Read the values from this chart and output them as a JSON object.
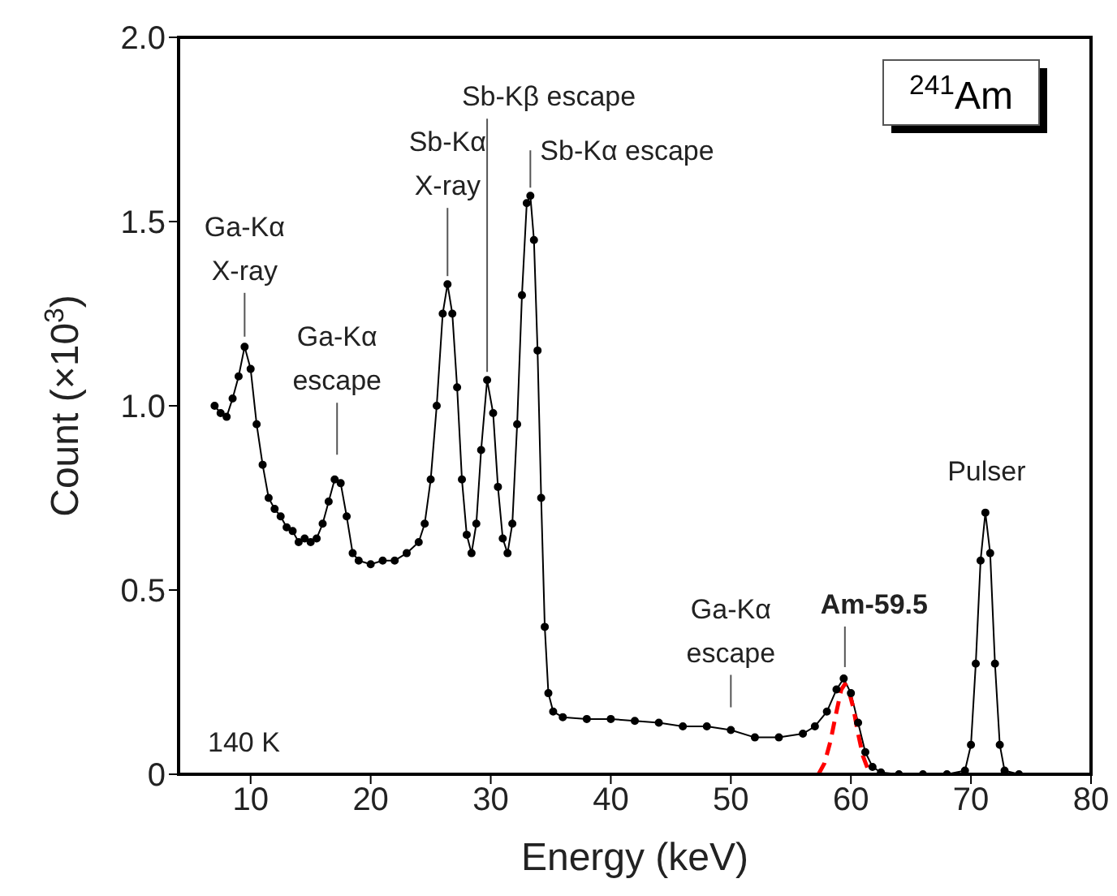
{
  "chart_data": {
    "type": "line",
    "xlabel": "Energy (keV)",
    "ylabel": "Count (×10$^{3}$)",
    "xlim": [
      4,
      80
    ],
    "xticks": [
      10,
      20,
      30,
      40,
      50,
      60,
      70,
      80
    ],
    "ylim": [
      0,
      2
    ],
    "yticks": [
      0,
      0.5,
      {
        "value": 1,
        "label": "1.0"
      },
      1.5,
      {
        "value": 2,
        "label": "2.0"
      }
    ],
    "grid": false,
    "series": [
      {
        "color": "#000000",
        "marker": "circle",
        "line_style": "solid",
        "x": [
          7,
          7.5,
          8,
          8.5,
          9,
          9.5,
          10,
          10.5,
          11,
          11.5,
          12,
          12.5,
          13,
          13.5,
          14,
          14.5,
          15,
          15.5,
          16,
          16.5,
          17,
          17.5,
          18,
          18.5,
          19,
          20,
          21,
          22,
          23,
          24,
          24.5,
          25,
          25.5,
          26,
          26.4,
          26.8,
          27.2,
          27.6,
          28,
          28.4,
          28.8,
          29.2,
          29.7,
          30.2,
          30.6,
          31,
          31.4,
          31.8,
          32.2,
          32.6,
          33,
          33.3,
          33.6,
          33.9,
          34.2,
          34.5,
          34.8,
          35.2,
          36,
          38,
          40,
          42,
          44,
          46,
          48,
          50,
          52,
          54,
          56,
          57,
          58,
          58.8,
          59.4,
          60,
          60.6,
          61.2,
          61.8,
          62.5,
          64,
          66,
          68,
          69.5,
          70,
          70.4,
          70.8,
          71.2,
          71.6,
          72,
          72.4,
          72.8,
          74
        ],
        "values": [
          1,
          0.98,
          0.97,
          1.02,
          1.08,
          1.16,
          1.1,
          0.95,
          0.84,
          0.75,
          0.72,
          0.7,
          0.67,
          0.66,
          0.63,
          0.64,
          0.63,
          0.64,
          0.68,
          0.74,
          0.8,
          0.79,
          0.7,
          0.6,
          0.58,
          0.57,
          0.58,
          0.58,
          0.6,
          0.63,
          0.68,
          0.8,
          1,
          1.25,
          1.33,
          1.25,
          1.05,
          0.8,
          0.65,
          0.6,
          0.68,
          0.88,
          1.07,
          0.98,
          0.78,
          0.64,
          0.6,
          0.68,
          0.95,
          1.3,
          1.55,
          1.57,
          1.45,
          1.15,
          0.75,
          0.4,
          0.22,
          0.17,
          0.155,
          0.15,
          0.15,
          0.145,
          0.14,
          0.13,
          0.13,
          0.12,
          0.1,
          0.1,
          0.11,
          0.13,
          0.17,
          0.23,
          0.26,
          0.22,
          0.14,
          0.06,
          0.02,
          0.005,
          0,
          0,
          0,
          0.01,
          0.08,
          0.3,
          0.58,
          0.71,
          0.6,
          0.3,
          0.08,
          0.01,
          0
        ]
      },
      {
        "color": "#ff0000",
        "marker": "none",
        "line_style": "dashed",
        "x": [
          57.3,
          57.8,
          58.3,
          58.8,
          59.2,
          59.5,
          59.8,
          60.2,
          60.6,
          61,
          61.4,
          61.8
        ],
        "values": [
          0,
          0.03,
          0.09,
          0.17,
          0.23,
          0.245,
          0.23,
          0.18,
          0.11,
          0.05,
          0.015,
          0
        ]
      }
    ],
    "annotations": [
      {
        "text": "Ga-Kα\nX-ray",
        "x": 9.5,
        "y": 1.17
      },
      {
        "text": "Ga-Kα\nescape",
        "x": 17.2,
        "y": 0.81
      },
      {
        "text": "Sb-Kα\nX-ray",
        "x": 26.4,
        "y": 1.33
      },
      {
        "text": "Sb-Kβ escape",
        "x": 29.7,
        "y": 1.07
      },
      {
        "text": "Sb-Kα escape",
        "x": 33.3,
        "y": 1.57
      },
      {
        "text": "Ga-Kα\nescape",
        "x": 50,
        "y": 0.12
      },
      {
        "text": "Am-59.5",
        "x": 59.5,
        "y": 0.26
      },
      {
        "text": "Pulser",
        "x": 71.3,
        "y": 0.71
      },
      "140 K",
      "$^{241}$Am"
    ]
  }
}
